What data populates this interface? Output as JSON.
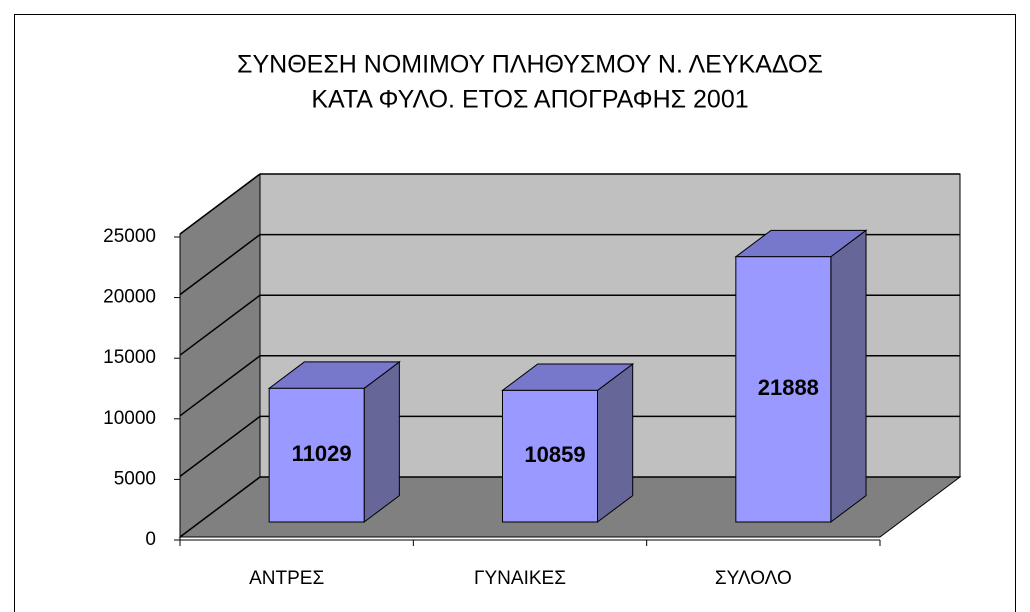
{
  "chart_data": {
    "type": "bar3d",
    "title": [
      "ΣΥΝΘΕΣΗ ΝΟΜΙΜΟΥ ΠΛΗΘΥΣΜΟΥ Ν. ΛΕΥΚΑΔΟΣ",
      "ΚΑΤΑ ΦΥΛΟ. ΕΤΟΣ ΑΠΟΓΡΑΦΗΣ 2001"
    ],
    "categories": [
      "ΑΝΤΡΕΣ",
      "ΓΥΝΑΙΚΕΣ",
      "ΣΥΛΟΛΟ"
    ],
    "values": [
      11029,
      10859,
      21888
    ],
    "color": "#9999ff",
    "ylim": [
      0,
      25000
    ],
    "yticks": [
      0,
      5000,
      10000,
      15000,
      20000,
      25000
    ],
    "grid": true
  }
}
